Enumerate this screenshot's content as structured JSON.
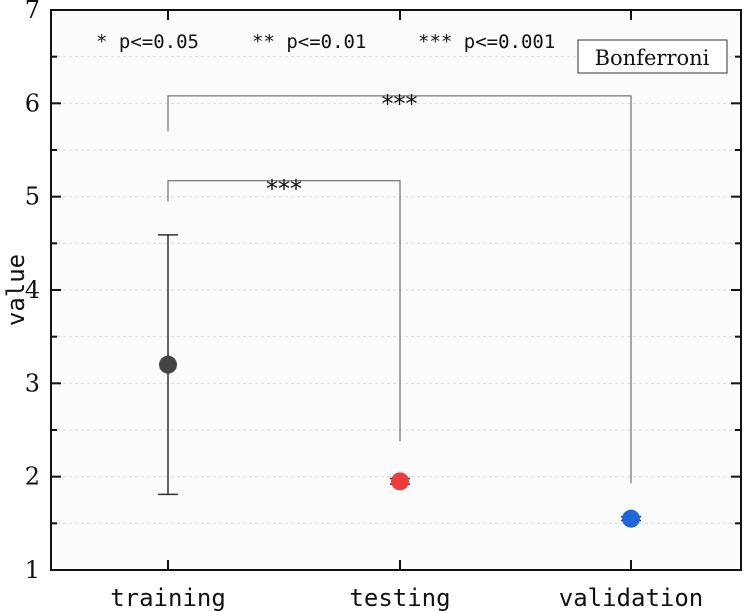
{
  "chart_data": {
    "type": "scatter",
    "categories": [
      "training",
      "testing",
      "validation"
    ],
    "ylabel": "value",
    "ylim": [
      1,
      7
    ],
    "yticks": [
      1,
      2,
      3,
      4,
      5,
      6,
      7
    ],
    "grid": true,
    "points": [
      {
        "category": "training",
        "value": 3.2,
        "err_low": 1.81,
        "err_high": 4.59,
        "color": "#444444"
      },
      {
        "category": "testing",
        "value": 1.95,
        "err_low": 1.92,
        "err_high": 1.98,
        "color": "#ee3b3b"
      },
      {
        "category": "validation",
        "value": 1.55,
        "err_low": 1.53,
        "err_high": 1.57,
        "color": "#1f66d8"
      }
    ],
    "significance_legend": [
      "* p<=0.05",
      "** p<=0.01",
      "*** p<=0.001"
    ],
    "method_label": "Bonferroni",
    "comparisons": [
      {
        "from": "training",
        "to": "testing",
        "label": "***",
        "y": 5.17
      },
      {
        "from": "training",
        "to": "validation",
        "label": "***",
        "y": 6.08
      }
    ]
  }
}
